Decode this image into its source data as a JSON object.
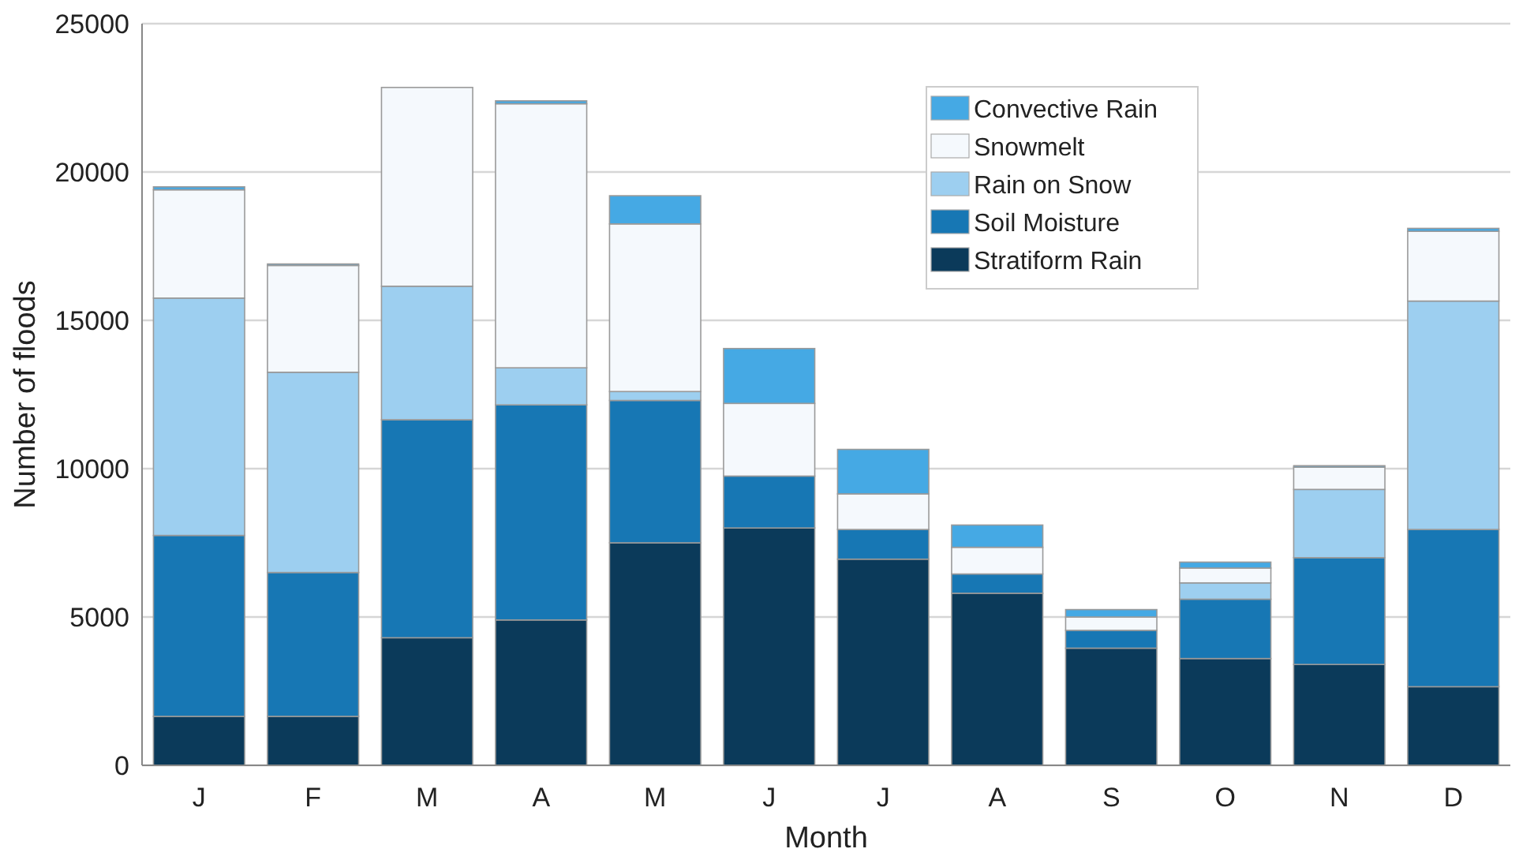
{
  "chart_data": {
    "type": "bar",
    "stacked": true,
    "xlabel": "Month",
    "ylabel": "Number of floods",
    "categories": [
      "J",
      "F",
      "M",
      "A",
      "M",
      "J",
      "J",
      "A",
      "S",
      "O",
      "N",
      "D"
    ],
    "series": [
      {
        "name": "Stratiform Rain",
        "color": "#0b3a5a",
        "values": [
          1650,
          1650,
          4300,
          4900,
          7500,
          8000,
          6950,
          5800,
          3950,
          3600,
          3400,
          2650
        ]
      },
      {
        "name": "Soil Moisture",
        "color": "#1777b4",
        "values": [
          6100,
          4850,
          7350,
          7250,
          4800,
          1750,
          1000,
          650,
          600,
          2000,
          3600,
          5300
        ]
      },
      {
        "name": "Rain on Snow",
        "color": "#9dcff0",
        "values": [
          8000,
          6750,
          4500,
          1250,
          300,
          0,
          0,
          0,
          0,
          550,
          2300,
          7700
        ]
      },
      {
        "name": "Snowmelt",
        "color": "#f5f9fd",
        "values": [
          3650,
          3600,
          6700,
          8900,
          5650,
          2450,
          1200,
          900,
          450,
          500,
          750,
          2350
        ]
      },
      {
        "name": "Convective Rain",
        "color": "#45a9e4",
        "values": [
          100,
          50,
          0,
          100,
          950,
          1850,
          1500,
          750,
          250,
          200,
          50,
          100
        ]
      }
    ],
    "ylim": [
      0,
      25000
    ],
    "yticks": [
      0,
      5000,
      10000,
      15000,
      20000,
      25000
    ],
    "grid": "y",
    "legend": "top right"
  }
}
